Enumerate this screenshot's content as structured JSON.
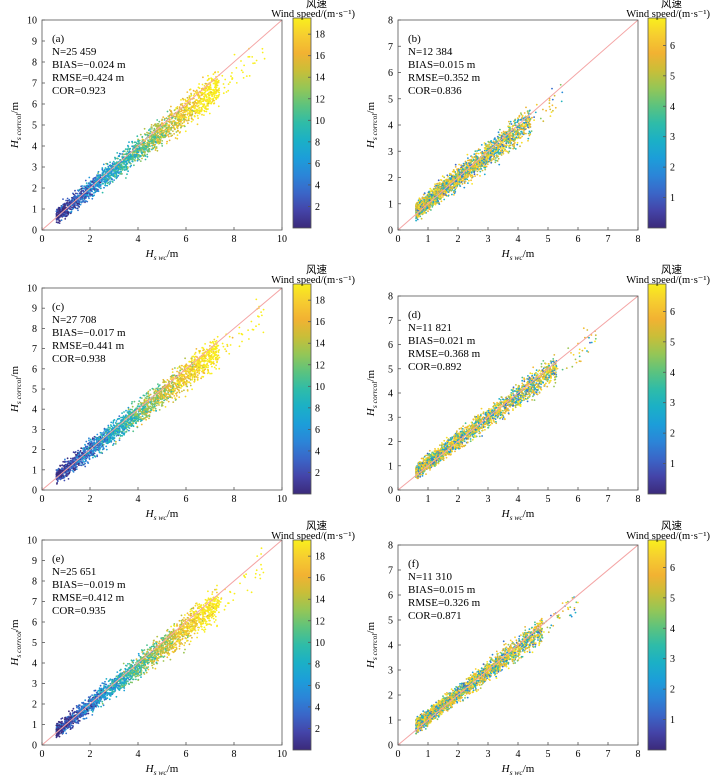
{
  "figure": {
    "colormap_stops": [
      "#3b2a7a",
      "#4444a8",
      "#3a66c8",
      "#2b85d8",
      "#1c9ed9",
      "#1bb0c6",
      "#2fbca8",
      "#5cc37e",
      "#95c656",
      "#c9be38",
      "#f2b232",
      "#f6cd30",
      "#f9ef1d"
    ],
    "diagonal_color": "#f4a4a4",
    "point_note": "dense scatter, colored by wind speed"
  },
  "chart_data": [
    {
      "type": "scatter",
      "panel": "(a)",
      "stats": {
        "n": "N=25 459",
        "bias": "BIAS=−0.024 m",
        "rmse": "RMSE=0.424 m",
        "cor": "COR=0.923"
      },
      "xlabel": {
        "main": "H",
        "sub": "s wc",
        "unit": "/m"
      },
      "ylabel": {
        "main": "H",
        "sub": "s corrcol",
        "unit": "/m"
      },
      "xlim": [
        0,
        10
      ],
      "ylim": [
        0,
        10
      ],
      "xticks": [
        "0",
        "2",
        "4",
        "6",
        "8",
        "10"
      ],
      "yticks": [
        "0",
        "1",
        "2",
        "3",
        "4",
        "5",
        "6",
        "7",
        "8",
        "9",
        "10"
      ],
      "colorbar": {
        "title_cn": "风速",
        "title_en": "Wind speed/(m·s⁻¹)",
        "range": [
          0,
          19.5
        ],
        "ticks": [
          "2",
          "4",
          "6",
          "8",
          "10",
          "12",
          "14",
          "16",
          "18"
        ]
      },
      "cloud": {
        "x_range": [
          0.6,
          9.3
        ],
        "slope": 0.92,
        "intercept": 0.1,
        "spread": 0.55,
        "color_trend": "wind speed increases with wave height"
      },
      "diagonal": "1:1 line"
    },
    {
      "type": "scatter",
      "panel": "(b)",
      "stats": {
        "n": "N=12 384",
        "bias": "BIAS=0.015 m",
        "rmse": "RMSE=0.352 m",
        "cor": "COR=0.836"
      },
      "xlabel": {
        "main": "H",
        "sub": "s wc",
        "unit": "/m"
      },
      "ylabel": {
        "main": "H",
        "sub": "s corrcol",
        "unit": "/m"
      },
      "xlim": [
        0,
        8
      ],
      "ylim": [
        0,
        8
      ],
      "xticks": [
        "0",
        "1",
        "2",
        "3",
        "4",
        "5",
        "6",
        "7",
        "8"
      ],
      "yticks": [
        "0",
        "1",
        "2",
        "3",
        "4",
        "5",
        "6",
        "7",
        "8"
      ],
      "colorbar": {
        "title_cn": "风速",
        "title_en": "Wind speed/(m·s⁻¹)",
        "range": [
          0,
          6.9
        ],
        "ticks": [
          "1",
          "2",
          "3",
          "4",
          "5",
          "6"
        ]
      },
      "cloud": {
        "x_range": [
          0.6,
          5.5
        ],
        "slope": 0.9,
        "intercept": 0.2,
        "spread": 0.5,
        "color_trend": "mixed"
      },
      "diagonal": "1:1 line"
    },
    {
      "type": "scatter",
      "panel": "(c)",
      "stats": {
        "n": "N=27 708",
        "bias": "BIAS=−0.017 m",
        "rmse": "RMSE=0.441 m",
        "cor": "COR=0.938"
      },
      "xlabel": {
        "main": "H",
        "sub": "s wc",
        "unit": "/m"
      },
      "ylabel": {
        "main": "H",
        "sub": "s corrcol",
        "unit": "/m"
      },
      "xlim": [
        0,
        10
      ],
      "ylim": [
        0,
        10
      ],
      "xticks": [
        "0",
        "2",
        "4",
        "6",
        "8",
        "10"
      ],
      "yticks": [
        "0",
        "1",
        "2",
        "3",
        "4",
        "5",
        "6",
        "7",
        "8",
        "9",
        "10"
      ],
      "colorbar": {
        "title_cn": "风速",
        "title_en": "Wind speed/(m·s⁻¹)",
        "range": [
          0,
          19.5
        ],
        "ticks": [
          "2",
          "4",
          "6",
          "8",
          "10",
          "12",
          "14",
          "16",
          "18"
        ]
      },
      "cloud": {
        "x_range": [
          0.6,
          9.3
        ],
        "slope": 0.93,
        "intercept": 0.1,
        "spread": 0.55,
        "color_trend": "wind speed increases with wave height"
      },
      "diagonal": "1:1 line"
    },
    {
      "type": "scatter",
      "panel": "(d)",
      "stats": {
        "n": "N=11 821",
        "bias": "BIAS=0.021 m",
        "rmse": "RMSE=0.368 m",
        "cor": "COR=0.892"
      },
      "xlabel": {
        "main": "H",
        "sub": "s wc",
        "unit": "/m"
      },
      "ylabel": {
        "main": "H",
        "sub": "s corrcol",
        "unit": "/m"
      },
      "xlim": [
        0,
        8
      ],
      "ylim": [
        0,
        8
      ],
      "xticks": [
        "0",
        "1",
        "2",
        "3",
        "4",
        "5",
        "6",
        "7",
        "8"
      ],
      "yticks": [
        "0",
        "1",
        "2",
        "3",
        "4",
        "5",
        "6",
        "7",
        "8"
      ],
      "colorbar": {
        "title_cn": "风速",
        "title_en": "Wind speed/(m·s⁻¹)",
        "range": [
          0,
          6.9
        ],
        "ticks": [
          "1",
          "2",
          "3",
          "4",
          "5",
          "6"
        ]
      },
      "cloud": {
        "x_range": [
          0.6,
          6.6
        ],
        "slope": 0.92,
        "intercept": 0.2,
        "spread": 0.45,
        "color_trend": "mixed"
      },
      "diagonal": "1:1 line"
    },
    {
      "type": "scatter",
      "panel": "(e)",
      "stats": {
        "n": "N=25 651",
        "bias": "BIAS=−0.019 m",
        "rmse": "RMSE=0.412 m",
        "cor": "COR=0.935"
      },
      "xlabel": {
        "main": "H",
        "sub": "s wc",
        "unit": "/m"
      },
      "ylabel": {
        "main": "H",
        "sub": "s corrcol",
        "unit": "/m"
      },
      "xlim": [
        0,
        10
      ],
      "ylim": [
        0,
        10
      ],
      "xticks": [
        "0",
        "2",
        "4",
        "6",
        "8",
        "10"
      ],
      "yticks": [
        "0",
        "1",
        "2",
        "3",
        "4",
        "5",
        "6",
        "7",
        "8",
        "9",
        "10"
      ],
      "colorbar": {
        "title_cn": "风速",
        "title_en": "Wind speed/(m·s⁻¹)",
        "range": [
          0,
          19.5
        ],
        "ticks": [
          "2",
          "4",
          "6",
          "8",
          "10",
          "12",
          "14",
          "16",
          "18"
        ]
      },
      "cloud": {
        "x_range": [
          0.6,
          9.3
        ],
        "slope": 0.93,
        "intercept": 0.1,
        "spread": 0.52,
        "color_trend": "wind speed increases with wave height"
      },
      "diagonal": "1:1 line"
    },
    {
      "type": "scatter",
      "panel": "(f)",
      "stats": {
        "n": "N=11 310",
        "bias": "BIAS=0.015 m",
        "rmse": "RMSE=0.326 m",
        "cor": "COR=0.871"
      },
      "xlabel": {
        "main": "H",
        "sub": "s wc",
        "unit": "/m"
      },
      "ylabel": {
        "main": "H",
        "sub": "s corrcol",
        "unit": "/m"
      },
      "xlim": [
        0,
        8
      ],
      "ylim": [
        0,
        8
      ],
      "xticks": [
        "0",
        "1",
        "2",
        "3",
        "4",
        "5",
        "6",
        "7",
        "8"
      ],
      "yticks": [
        "0",
        "1",
        "2",
        "3",
        "4",
        "5",
        "6",
        "7",
        "8"
      ],
      "colorbar": {
        "title_cn": "风速",
        "title_en": "Wind speed/(m·s⁻¹)",
        "range": [
          0,
          6.9
        ],
        "ticks": [
          "1",
          "2",
          "3",
          "4",
          "5",
          "6"
        ]
      },
      "cloud": {
        "x_range": [
          0.6,
          6.0
        ],
        "slope": 0.92,
        "intercept": 0.2,
        "spread": 0.42,
        "color_trend": "mixed"
      },
      "diagonal": "1:1 line"
    }
  ]
}
